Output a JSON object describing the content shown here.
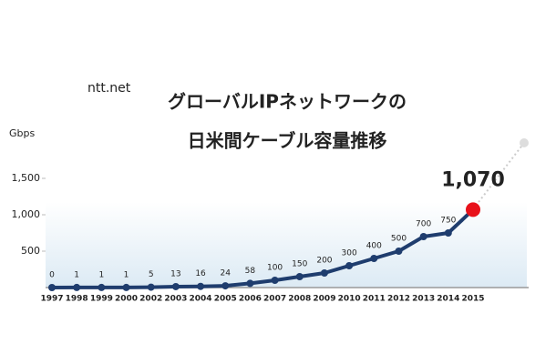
{
  "chart_data": {
    "type": "line",
    "logo": "ntt.net",
    "title": "グローバルIPネットワークの",
    "subtitle": "日米間ケーブル容量推移",
    "y_label": "Gbps",
    "categories": [
      "1997",
      "1998",
      "1999",
      "2000",
      "2002",
      "2003",
      "2004",
      "2005",
      "2006",
      "2007",
      "2008",
      "2009",
      "2010",
      "2011",
      "2012",
      "2013",
      "2014",
      "2015"
    ],
    "values": [
      0,
      1,
      1,
      1,
      5,
      13,
      16,
      24,
      58,
      100,
      150,
      200,
      300,
      400,
      500,
      700,
      750,
      1070
    ],
    "value_labels": [
      "0",
      "1",
      "1",
      "1",
      "5",
      "13",
      "16",
      "24",
      "58",
      "100",
      "150",
      "200",
      "300",
      "400",
      "500",
      "700",
      "750",
      "1,070"
    ],
    "color": "#1f3d6e",
    "highlight_color": "#e8121b",
    "ylim": [
      0,
      2200
    ],
    "yticks": [
      500,
      {
        "value": 1000,
        "label": "1,000"
      },
      {
        "value": 1500,
        "label": "1,500"
      }
    ]
  }
}
